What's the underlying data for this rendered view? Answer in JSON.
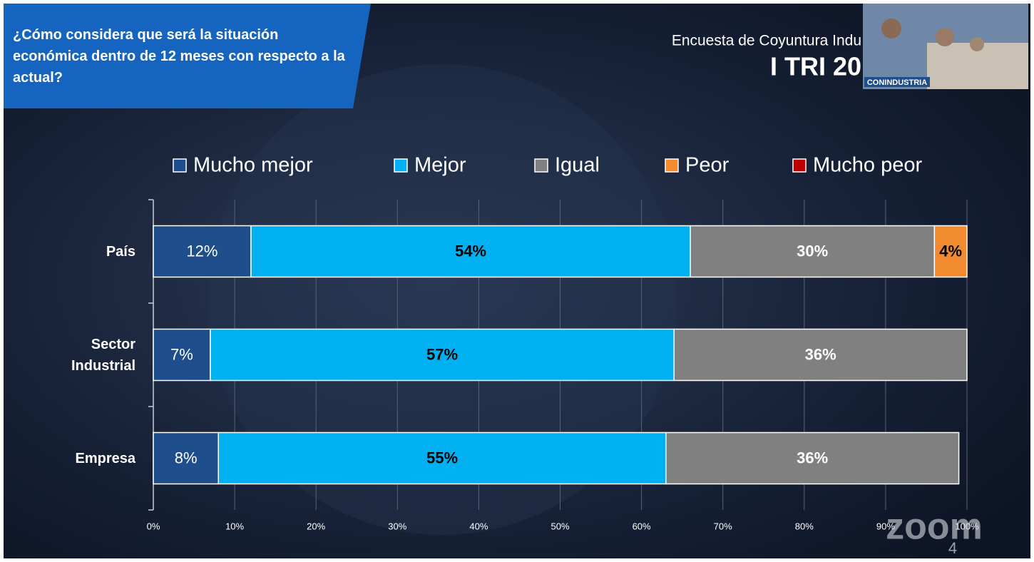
{
  "slide": {
    "question": "¿Cómo considera que será la situación económica dentro de 12 meses con respecto a la actual?",
    "header_line1": "Encuesta de Coyuntura Indu",
    "header_line2": "I TRI 20",
    "video_caption": "CONINDUSTRIA",
    "page_number": "4",
    "watermark": "zoom"
  },
  "chart_data": {
    "type": "stacked-barh",
    "categories": [
      "País",
      "Sector Industrial",
      "Empresa"
    ],
    "series": [
      {
        "name": "Mucho mejor",
        "color": "#1f4e8c",
        "values": [
          12,
          7,
          8
        ],
        "value_labels": [
          "12%",
          "7%",
          "8%"
        ]
      },
      {
        "name": "Mejor",
        "color": "#00b0f0",
        "values": [
          54,
          57,
          55
        ],
        "value_labels": [
          "54%",
          "57%",
          "55%"
        ]
      },
      {
        "name": "Igual",
        "color": "#808080",
        "values": [
          30,
          36,
          36
        ],
        "value_labels": [
          "30%",
          "36%",
          "36%"
        ]
      },
      {
        "name": "Peor",
        "color": "#f28a30",
        "values": [
          4,
          0,
          0
        ],
        "value_labels": [
          "4%",
          null,
          null
        ]
      },
      {
        "name": "Mucho peor",
        "color": "#c00000",
        "values": [
          0,
          0,
          0
        ],
        "value_labels": [
          null,
          null,
          null
        ]
      }
    ],
    "xlim": [
      0,
      100
    ],
    "xticks": [
      {
        "value": 0,
        "label": "0%"
      },
      {
        "value": 10,
        "label": "10%"
      },
      {
        "value": 20,
        "label": "20%"
      },
      {
        "value": 30,
        "label": "30%"
      },
      {
        "value": 40,
        "label": "40%"
      },
      {
        "value": 50,
        "label": "50%"
      },
      {
        "value": 60,
        "label": "60%"
      },
      {
        "value": 70,
        "label": "70%"
      },
      {
        "value": 80,
        "label": "80%"
      },
      {
        "value": 90,
        "label": "90%"
      },
      {
        "value": 100,
        "label": "100%"
      }
    ],
    "grid": true,
    "legend": "top"
  }
}
